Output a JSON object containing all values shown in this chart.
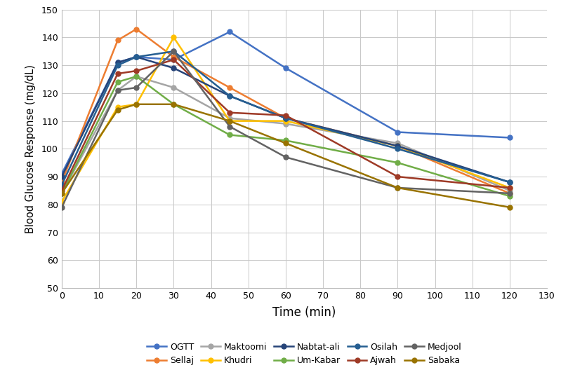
{
  "time_points": [
    0,
    15,
    20,
    30,
    45,
    60,
    90,
    120
  ],
  "series": [
    {
      "label": "OGTT",
      "color": "#4472C4",
      "values": [
        91,
        131,
        133,
        132,
        142,
        129,
        106,
        104
      ]
    },
    {
      "label": "Sellaj",
      "color": "#ED7D31",
      "values": [
        88,
        139,
        143,
        133,
        122,
        111,
        101,
        84
      ]
    },
    {
      "label": "Maktoomi",
      "color": "#A5A5A5",
      "values": [
        84,
        121,
        126,
        122,
        111,
        109,
        102,
        85
      ]
    },
    {
      "label": "Khudri",
      "color": "#FFC000",
      "values": [
        81,
        115,
        116,
        140,
        110,
        110,
        101,
        86
      ]
    },
    {
      "label": "Nabtat-ali",
      "color": "#264478",
      "values": [
        90,
        131,
        133,
        129,
        119,
        111,
        101,
        88
      ]
    },
    {
      "label": "Um-Kabar",
      "color": "#70AD47",
      "values": [
        84,
        124,
        126,
        116,
        105,
        103,
        95,
        83
      ]
    },
    {
      "label": "Osilah",
      "color": "#255E91",
      "values": [
        87,
        130,
        133,
        135,
        119,
        111,
        100,
        88
      ]
    },
    {
      "label": "Ajwah",
      "color": "#9E3A26",
      "values": [
        85,
        127,
        128,
        132,
        113,
        112,
        90,
        86
      ]
    },
    {
      "label": "Medjool",
      "color": "#636363",
      "values": [
        79,
        121,
        122,
        135,
        108,
        97,
        86,
        84
      ]
    },
    {
      "label": "Sabaka",
      "color": "#997300",
      "values": [
        84,
        114,
        116,
        116,
        110,
        102,
        86,
        79
      ]
    }
  ],
  "legend_order": [
    0,
    1,
    2,
    3,
    4,
    5,
    6,
    7,
    8,
    9
  ],
  "xlabel": "Time (min)",
  "ylabel": "Blood Glucose Response (mg/dL)",
  "xlim": [
    0,
    130
  ],
  "ylim": [
    50,
    150
  ],
  "xticks": [
    0,
    10,
    20,
    30,
    40,
    50,
    60,
    70,
    80,
    90,
    100,
    110,
    120,
    130
  ],
  "yticks": [
    50,
    60,
    70,
    80,
    90,
    100,
    110,
    120,
    130,
    140,
    150
  ],
  "background_color": "#FFFFFF",
  "grid_color": "#C8C8C8"
}
